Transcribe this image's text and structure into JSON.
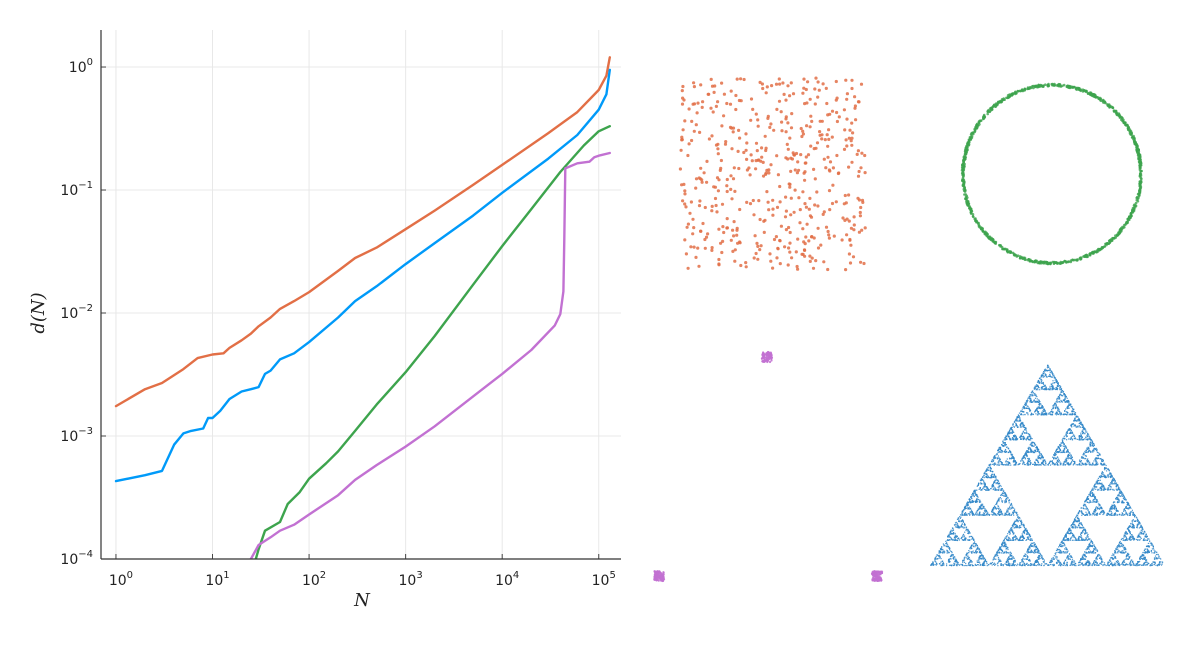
{
  "chart_data": [
    {
      "type": "line",
      "title": "",
      "xlabel": "N",
      "ylabel": "d(N)",
      "x_scale": "log10",
      "y_scale": "log10",
      "xlim": [
        0.7,
        170000
      ],
      "ylim": [
        0.0001,
        2
      ],
      "grid": true,
      "legend": "none",
      "x_ticks": [
        {
          "value": 1,
          "label": "10^0"
        },
        {
          "value": 10,
          "label": "10^1"
        },
        {
          "value": 100,
          "label": "10^2"
        },
        {
          "value": 1000,
          "label": "10^3"
        },
        {
          "value": 10000,
          "label": "10^4"
        },
        {
          "value": 100000,
          "label": "10^5"
        }
      ],
      "y_ticks": [
        {
          "value": 0.0001,
          "label": "10^-4"
        },
        {
          "value": 0.001,
          "label": "10^-3"
        },
        {
          "value": 0.01,
          "label": "10^-2"
        },
        {
          "value": 0.1,
          "label": "10^-1"
        },
        {
          "value": 1,
          "label": "10^0"
        }
      ],
      "series": [
        {
          "color": "#e26f46",
          "points": [
            [
              1,
              0.00175
            ],
            [
              2,
              0.0024
            ],
            [
              3,
              0.0027
            ],
            [
              5,
              0.0035
            ],
            [
              7,
              0.0043
            ],
            [
              10,
              0.0046
            ],
            [
              13,
              0.0047
            ],
            [
              15,
              0.0052
            ],
            [
              20,
              0.006
            ],
            [
              25,
              0.0068
            ],
            [
              30,
              0.0078
            ],
            [
              40,
              0.0092
            ],
            [
              50,
              0.0108
            ],
            [
              70,
              0.0125
            ],
            [
              100,
              0.0148
            ],
            [
              200,
              0.022
            ],
            [
              300,
              0.028
            ],
            [
              500,
              0.034
            ],
            [
              1000,
              0.048
            ],
            [
              2000,
              0.068
            ],
            [
              5000,
              0.11
            ],
            [
              10000,
              0.16
            ],
            [
              30000,
              0.29
            ],
            [
              60000,
              0.43
            ],
            [
              100000,
              0.65
            ],
            [
              120000,
              0.85
            ],
            [
              130000,
              1.2
            ]
          ]
        },
        {
          "color": "#009af9",
          "points": [
            [
              1,
              0.00043
            ],
            [
              2,
              0.00048
            ],
            [
              3,
              0.00052
            ],
            [
              4,
              0.00085
            ],
            [
              5,
              0.00105
            ],
            [
              6,
              0.0011
            ],
            [
              8,
              0.00115
            ],
            [
              9,
              0.0014
            ],
            [
              10,
              0.0014
            ],
            [
              12,
              0.0016
            ],
            [
              15,
              0.002
            ],
            [
              20,
              0.0023
            ],
            [
              25,
              0.0024
            ],
            [
              30,
              0.0025
            ],
            [
              35,
              0.0032
            ],
            [
              40,
              0.0034
            ],
            [
              50,
              0.0042
            ],
            [
              70,
              0.0047
            ],
            [
              100,
              0.0058
            ],
            [
              200,
              0.0092
            ],
            [
              300,
              0.0125
            ],
            [
              500,
              0.0165
            ],
            [
              1000,
              0.025
            ],
            [
              2000,
              0.037
            ],
            [
              5000,
              0.062
            ],
            [
              10000,
              0.095
            ],
            [
              30000,
              0.18
            ],
            [
              60000,
              0.28
            ],
            [
              100000,
              0.45
            ],
            [
              120000,
              0.6
            ],
            [
              130000,
              0.95
            ]
          ]
        },
        {
          "color": "#3da44d",
          "points": [
            [
              27,
              9e-05
            ],
            [
              30,
              0.00012
            ],
            [
              35,
              0.00017
            ],
            [
              50,
              0.0002
            ],
            [
              60,
              0.00028
            ],
            [
              80,
              0.00035
            ],
            [
              100,
              0.00045
            ],
            [
              150,
              0.0006
            ],
            [
              200,
              0.00075
            ],
            [
              300,
              0.0011
            ],
            [
              500,
              0.0018
            ],
            [
              1000,
              0.0033
            ],
            [
              2000,
              0.0065
            ],
            [
              5000,
              0.017
            ],
            [
              10000,
              0.035
            ],
            [
              20000,
              0.07
            ],
            [
              40000,
              0.14
            ],
            [
              70000,
              0.23
            ],
            [
              100000,
              0.3
            ],
            [
              130000,
              0.33
            ]
          ]
        },
        {
          "color": "#c271d2",
          "points": [
            [
              20,
              9e-05
            ],
            [
              25,
              0.0001
            ],
            [
              30,
              0.00013
            ],
            [
              40,
              0.00015
            ],
            [
              50,
              0.00017
            ],
            [
              70,
              0.00019
            ],
            [
              100,
              0.00023
            ],
            [
              200,
              0.00033
            ],
            [
              300,
              0.00044
            ],
            [
              500,
              0.00058
            ],
            [
              1000,
              0.00082
            ],
            [
              2000,
              0.0012
            ],
            [
              5000,
              0.0021
            ],
            [
              10000,
              0.0032
            ],
            [
              20000,
              0.005
            ],
            [
              35000,
              0.0079
            ],
            [
              40000,
              0.0098
            ],
            [
              43000,
              0.015
            ],
            [
              44000,
              0.04
            ],
            [
              45000,
              0.15
            ],
            [
              60000,
              0.165
            ],
            [
              80000,
              0.17
            ],
            [
              90000,
              0.185
            ],
            [
              100000,
              0.19
            ],
            [
              130000,
              0.2
            ]
          ]
        }
      ]
    },
    {
      "type": "scatter",
      "title": "",
      "panels": [
        {
          "shape": "uniform-square",
          "color": "#e26f46",
          "point_count": 500
        },
        {
          "shape": "circle",
          "color": "#3da44d",
          "point_count": 1000
        },
        {
          "shape": "three-point-clusters",
          "color": "#c271d2",
          "point_count": 300
        },
        {
          "shape": "sierpinski-triangle",
          "color": "#2f86c8",
          "point_count": 6000
        }
      ]
    }
  ]
}
